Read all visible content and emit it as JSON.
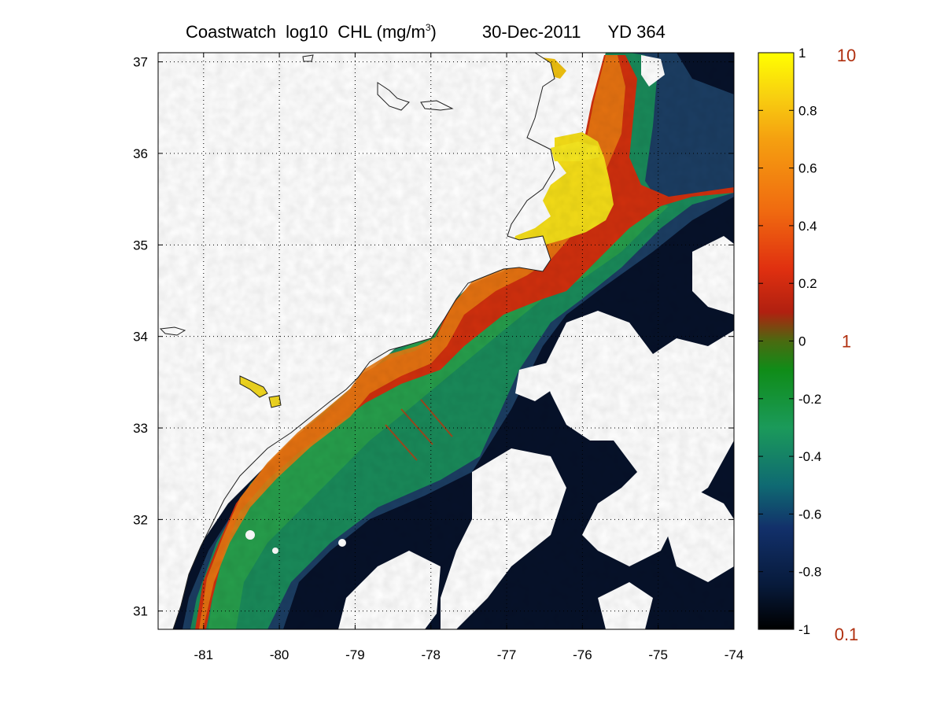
{
  "title": {
    "prefix": "Coastwatch  log10  CHL (mg/m",
    "superscript": "3",
    "suffix": ")",
    "date": "30-Dec-2011",
    "yearday": "YD 364"
  },
  "map": {
    "lon_range": [
      -81.6,
      -74.0
    ],
    "lat_range": [
      30.8,
      37.1
    ],
    "x_ticks": [
      {
        "value": -81,
        "label": "-81"
      },
      {
        "value": -80,
        "label": "-80"
      },
      {
        "value": -79,
        "label": "-79"
      },
      {
        "value": -78,
        "label": "-78"
      },
      {
        "value": -77,
        "label": "-77"
      },
      {
        "value": -76,
        "label": "-76"
      },
      {
        "value": -75,
        "label": "-75"
      },
      {
        "value": -74,
        "label": "-74"
      }
    ],
    "y_ticks": [
      {
        "value": 31,
        "label": "31"
      },
      {
        "value": 32,
        "label": "32"
      },
      {
        "value": 33,
        "label": "33"
      },
      {
        "value": 34,
        "label": "34"
      },
      {
        "value": 35,
        "label": "35"
      },
      {
        "value": 36,
        "label": "36"
      },
      {
        "value": 37,
        "label": "37"
      }
    ],
    "grid": "dotted",
    "colors": {
      "land": "#ffffff",
      "deep_water": "#07122a",
      "blue_water": "#1c3e63",
      "green_water": "#1a8a5a",
      "shelf_green": "#2aa14a",
      "coastal_red": "#d0300e",
      "coastal_orange": "#e77a12",
      "sound_yellow": "#f4dd18"
    }
  },
  "colorbar": {
    "value_range": [
      -1,
      1
    ],
    "ticks": [
      {
        "value": 1,
        "label": "1"
      },
      {
        "value": 0.8,
        "label": "0.8"
      },
      {
        "value": 0.6,
        "label": "0.6"
      },
      {
        "value": 0.4,
        "label": "0.4"
      },
      {
        "value": 0.2,
        "label": "0.2"
      },
      {
        "value": 0,
        "label": "0"
      },
      {
        "value": -0.2,
        "label": "-0.2"
      },
      {
        "value": -0.4,
        "label": "-0.4"
      },
      {
        "value": -0.6,
        "label": "-0.6"
      },
      {
        "value": -0.8,
        "label": "-0.8"
      },
      {
        "value": -1,
        "label": "-1"
      }
    ],
    "chl_labels": [
      {
        "value": 1,
        "label": "10"
      },
      {
        "value": 0,
        "label": "1"
      },
      {
        "value": -1,
        "label": "0.1"
      }
    ],
    "chl_label_color": "#b03010",
    "gradient": [
      {
        "value": -1,
        "color": "#000000"
      },
      {
        "value": -0.85,
        "color": "#071a3a"
      },
      {
        "value": -0.65,
        "color": "#12306a"
      },
      {
        "value": -0.5,
        "color": "#0f6a72"
      },
      {
        "value": -0.3,
        "color": "#1b9a5a"
      },
      {
        "value": -0.1,
        "color": "#0f8c18"
      },
      {
        "value": 0,
        "color": "#4a6a10"
      },
      {
        "value": 0.1,
        "color": "#b02010"
      },
      {
        "value": 0.25,
        "color": "#e03010"
      },
      {
        "value": 0.45,
        "color": "#f06a10"
      },
      {
        "value": 0.7,
        "color": "#f5a010"
      },
      {
        "value": 0.85,
        "color": "#f8d010"
      },
      {
        "value": 1,
        "color": "#ffff00"
      }
    ]
  }
}
